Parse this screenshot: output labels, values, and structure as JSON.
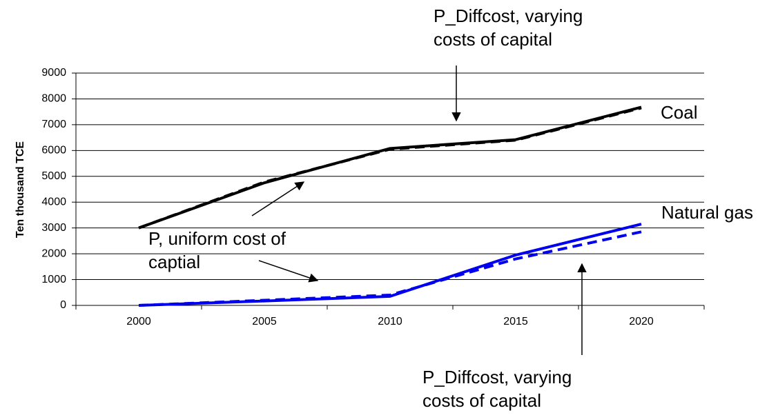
{
  "chart_data": {
    "type": "line",
    "y_label": "Ten thousand TCE",
    "categories": [
      "2000",
      "2005",
      "2010",
      "2015",
      "2020"
    ],
    "series": [
      {
        "color": "#000000",
        "dash": false,
        "values": [
          3000,
          4750,
          6080,
          6420,
          7680
        ]
      },
      {
        "color": "#000000",
        "dash": true,
        "values": [
          3000,
          4780,
          6050,
          6400,
          7650
        ]
      },
      {
        "color": "#0000ee",
        "dash": false,
        "values": [
          0,
          170,
          350,
          1950,
          3150
        ]
      },
      {
        "color": "#0000ee",
        "dash": true,
        "values": [
          0,
          200,
          400,
          1800,
          2850
        ]
      }
    ],
    "ylim": [
      0,
      9000
    ],
    "yticks": [
      0,
      1000,
      2000,
      3000,
      4000,
      5000,
      6000,
      7000,
      8000,
      9000
    ],
    "grid": true,
    "annotations": {
      "top": [
        "P_Diffcost, varying",
        "costs of capital"
      ],
      "uniform": [
        "P, uniform cost of",
        "captial"
      ],
      "bottom": [
        "P_Diffcost, varying",
        "costs of capital"
      ],
      "coal": "Coal",
      "gas": "Natural gas"
    }
  }
}
